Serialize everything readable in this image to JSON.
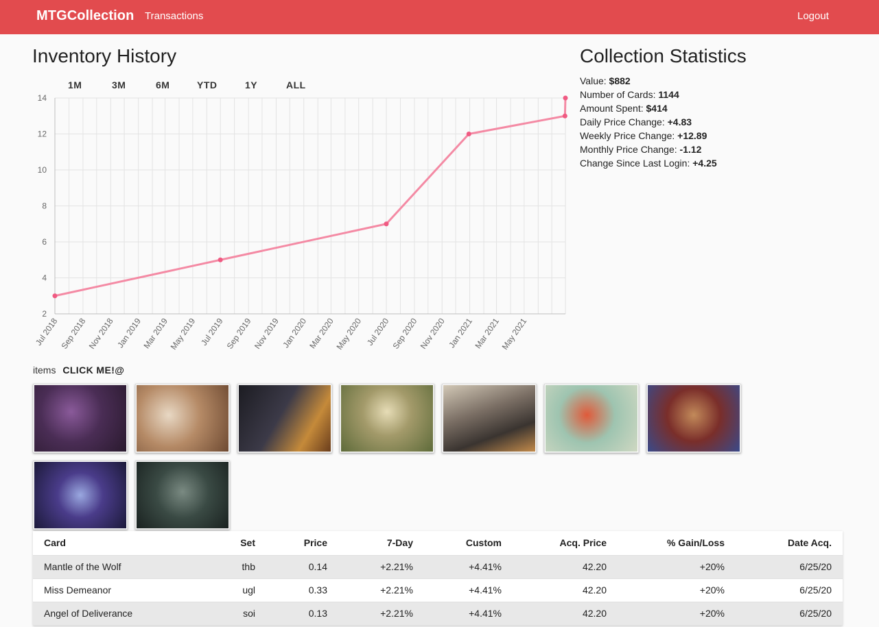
{
  "appbar": {
    "brand": "MTGCollection",
    "transactions": "Transactions",
    "logout": "Logout"
  },
  "inventory": {
    "title": "Inventory History",
    "ranges": [
      "1M",
      "3M",
      "6M",
      "YTD",
      "1Y",
      "ALL"
    ]
  },
  "chart_data": {
    "type": "line",
    "title": "",
    "xlabel": "",
    "ylabel": "",
    "ylim": [
      2,
      14
    ],
    "yticks": [
      2,
      4,
      6,
      8,
      10,
      12,
      14
    ],
    "xticks": [
      "Jul 2018",
      "Sep 2018",
      "Nov 2018",
      "Jan 2019",
      "Mar 2019",
      "May 2019",
      "Jul 2019",
      "Sep 2019",
      "Nov 2019",
      "Jan 2020",
      "Mar 2020",
      "May 2020",
      "Jul 2020",
      "Sep 2020",
      "Nov 2020",
      "Jan 2021",
      "Mar 2021",
      "May 2021"
    ],
    "xlim": [
      "2018-07-01",
      "2021-07-31"
    ],
    "grid": true,
    "series": [
      {
        "color": "#f48aa4",
        "x": [
          "2018-07-01",
          "2019-07-01",
          "2020-07-01",
          "2020-12-30",
          "2021-07-30",
          "2021-07-31"
        ],
        "values": [
          3,
          5,
          7,
          12,
          13,
          14
        ]
      }
    ]
  },
  "stats": {
    "title": "Collection Statistics",
    "rows": [
      {
        "label": "Value: ",
        "value": "$882"
      },
      {
        "label": "Number of Cards: ",
        "value": "1144"
      },
      {
        "label": "Amount Spent: ",
        "value": "$414"
      },
      {
        "label": "Daily Price Change: ",
        "value": "+4.83"
      },
      {
        "label": "Weekly Price Change: ",
        "value": "+12.89"
      },
      {
        "label": "Monthly Price Change: ",
        "value": "-1.12"
      },
      {
        "label": "Change Since Last Login: ",
        "value": "+4.25"
      }
    ]
  },
  "items": {
    "label": "items",
    "click_me": "CLICK ME!@"
  },
  "table": {
    "headers": [
      "Card",
      "Set",
      "Price",
      "7-Day",
      "Custom",
      "Acq. Price",
      "% Gain/Loss",
      "Date Acq."
    ],
    "rows": [
      [
        "Mantle of the Wolf",
        "thb",
        "0.14",
        "+2.21%",
        "+4.41%",
        "42.20",
        "+20%",
        "6/25/20"
      ],
      [
        "Miss Demeanor",
        "ugl",
        "0.33",
        "+2.21%",
        "+4.41%",
        "42.20",
        "+20%",
        "6/25/20"
      ],
      [
        "Angel of Deliverance",
        "soi",
        "0.13",
        "+2.21%",
        "+4.41%",
        "42.20",
        "+20%",
        "6/25/20"
      ]
    ]
  }
}
